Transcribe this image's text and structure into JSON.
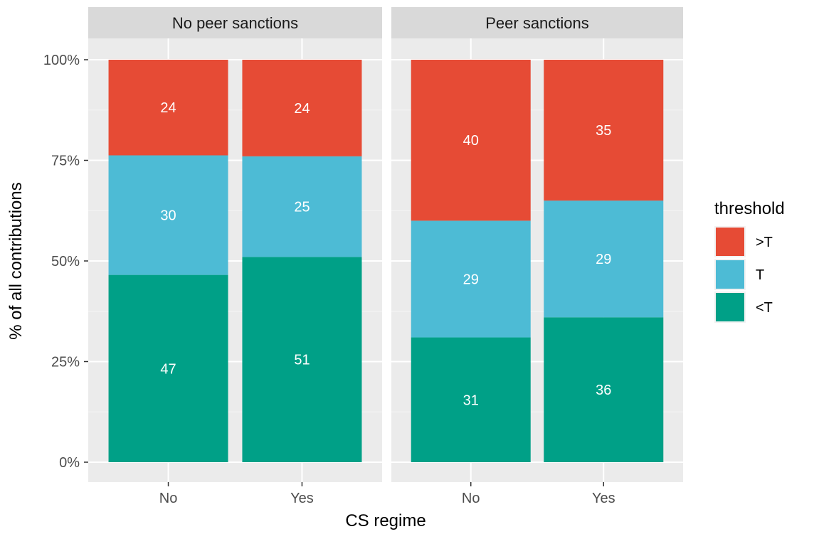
{
  "chart_data": {
    "type": "bar",
    "stacked": true,
    "xlabel": "CS regime",
    "ylabel": "% of all contributions",
    "ylim": [
      0,
      100
    ],
    "y_ticks": [
      "0%",
      "25%",
      "50%",
      "75%",
      "100%"
    ],
    "grid": true,
    "legend_position": "right",
    "categories": [
      "No",
      "Yes"
    ],
    "legend": {
      "title": "threshold",
      "entries": [
        {
          "label": ">T",
          "color": "#E64B35"
        },
        {
          "label": "T",
          "color": "#4DBBD5"
        },
        {
          "label": "<T",
          "color": "#00A087"
        }
      ]
    },
    "stack_order_bottom_to_top": [
      "<T",
      "T",
      ">T"
    ],
    "panels": [
      {
        "title": "No peer sanctions",
        "bars": [
          {
            "category": "No",
            "segments": [
              {
                "series": "<T",
                "value": 47,
                "label": "47"
              },
              {
                "series": "T",
                "value": 30,
                "label": "30"
              },
              {
                "series": ">T",
                "value": 24,
                "label": "24"
              }
            ]
          },
          {
            "category": "Yes",
            "segments": [
              {
                "series": "<T",
                "value": 51,
                "label": "51"
              },
              {
                "series": "T",
                "value": 25,
                "label": "25"
              },
              {
                "series": ">T",
                "value": 24,
                "label": "24"
              }
            ]
          }
        ]
      },
      {
        "title": "Peer sanctions",
        "bars": [
          {
            "category": "No",
            "segments": [
              {
                "series": "<T",
                "value": 31,
                "label": "31"
              },
              {
                "series": "T",
                "value": 29,
                "label": "29"
              },
              {
                "series": ">T",
                "value": 40,
                "label": "40"
              }
            ]
          },
          {
            "category": "Yes",
            "segments": [
              {
                "series": "<T",
                "value": 36,
                "label": "36"
              },
              {
                "series": "T",
                "value": 29,
                "label": "29"
              },
              {
                "series": ">T",
                "value": 35,
                "label": "35"
              }
            ]
          }
        ]
      }
    ],
    "colors": {
      "panel_background": "#EBEBEB",
      "strip_background": "#D9D9D9",
      "grid_major": "#FFFFFF"
    }
  }
}
